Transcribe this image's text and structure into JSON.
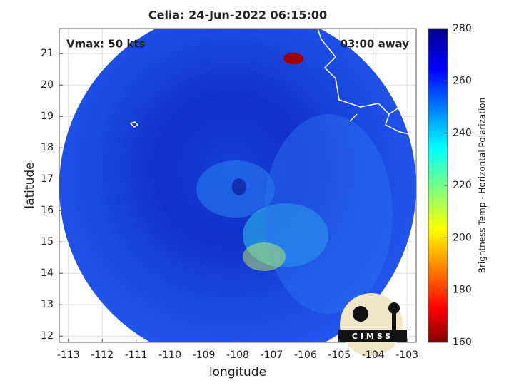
{
  "chart_data": {
    "type": "image",
    "title": "Celia: 24-Jun-2022 06:15:00",
    "xlabel": "longitude",
    "ylabel": "latitude",
    "xlim": [
      -113.27,
      -102.73
    ],
    "ylim": [
      11.8,
      21.8
    ],
    "xticks": [
      -113,
      -112,
      -111,
      -110,
      -109,
      -108,
      -107,
      -106,
      -105,
      -104,
      -103
    ],
    "yticks": [
      12,
      13,
      14,
      15,
      16,
      17,
      18,
      19,
      20,
      21
    ],
    "grid": true,
    "annotations": [
      "Vmax: 50 kts",
      "03:00 away"
    ],
    "logo": "CIMSS",
    "colorbar": {
      "label": "Brightness Temp - Horizontal Polarization",
      "clim": [
        160,
        280
      ],
      "ticks": [
        160,
        180,
        200,
        220,
        240,
        260,
        280
      ],
      "colormap": "jet"
    }
  }
}
